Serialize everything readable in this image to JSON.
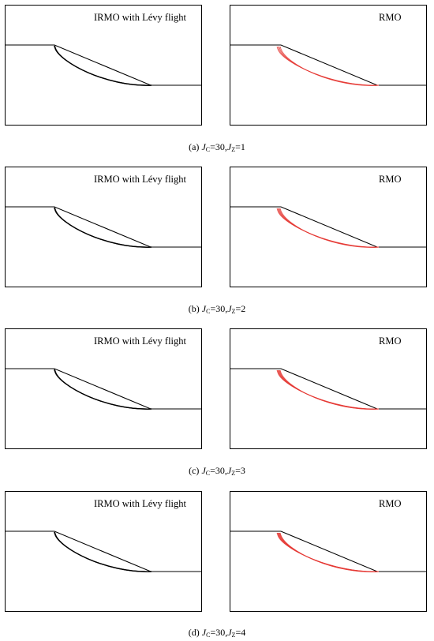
{
  "colors": {
    "irmo_curves": "#000000",
    "rmo_curves": "#e53935",
    "slope": "#000000"
  },
  "figure": {
    "left_panel_label": "IRMO with Lévy flight",
    "right_panel_label": "RMO",
    "rows": [
      {
        "caption_prefix": "(a) ",
        "caption_j": "J",
        "caption_sub_c": "C",
        "caption_mid": "=30,",
        "caption_sub_z": "Z",
        "caption_end": "=1"
      },
      {
        "caption_prefix": "(b) ",
        "caption_j": "J",
        "caption_sub_c": "C",
        "caption_mid": "=30,",
        "caption_sub_z": "Z",
        "caption_end": "=2"
      },
      {
        "caption_prefix": "(c) ",
        "caption_j": "J",
        "caption_sub_c": "C",
        "caption_mid": "=30,",
        "caption_sub_z": "Z",
        "caption_end": "=3"
      },
      {
        "caption_prefix": "(d) ",
        "caption_j": "J",
        "caption_sub_c": "C",
        "caption_mid": "=30,",
        "caption_sub_z": "Z",
        "caption_end": "=4"
      }
    ]
  }
}
